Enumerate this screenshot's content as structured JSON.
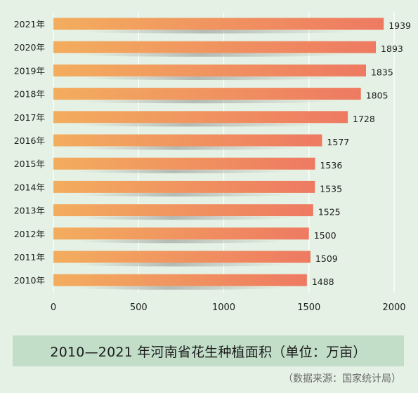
{
  "chart_data": {
    "type": "bar",
    "orientation": "horizontal",
    "title": "2010—2021 年河南省花生种植面积（单位：万亩）",
    "source": "（数据来源：国家统计局）",
    "categories": [
      "2021年",
      "2020年",
      "2019年",
      "2018年",
      "2017年",
      "2016年",
      "2015年",
      "2014年",
      "2013年",
      "2012年",
      "2011年",
      "2010年"
    ],
    "values": [
      1939,
      1893,
      1835,
      1805,
      1728,
      1577,
      1536,
      1535,
      1525,
      1500,
      1509,
      1488
    ],
    "x_ticks": [
      0,
      500,
      1000,
      1500,
      2000
    ],
    "xlim": [
      0,
      2000
    ],
    "xlabel": "",
    "ylabel": "",
    "grid": true,
    "colors": {
      "bar_start": "#f3ad5e",
      "bar_end": "#ee7a62",
      "background": "#e4f1e4",
      "gridline": "#ffffff",
      "title_box": "#c2dec8",
      "text": "#1e1e1e"
    }
  }
}
